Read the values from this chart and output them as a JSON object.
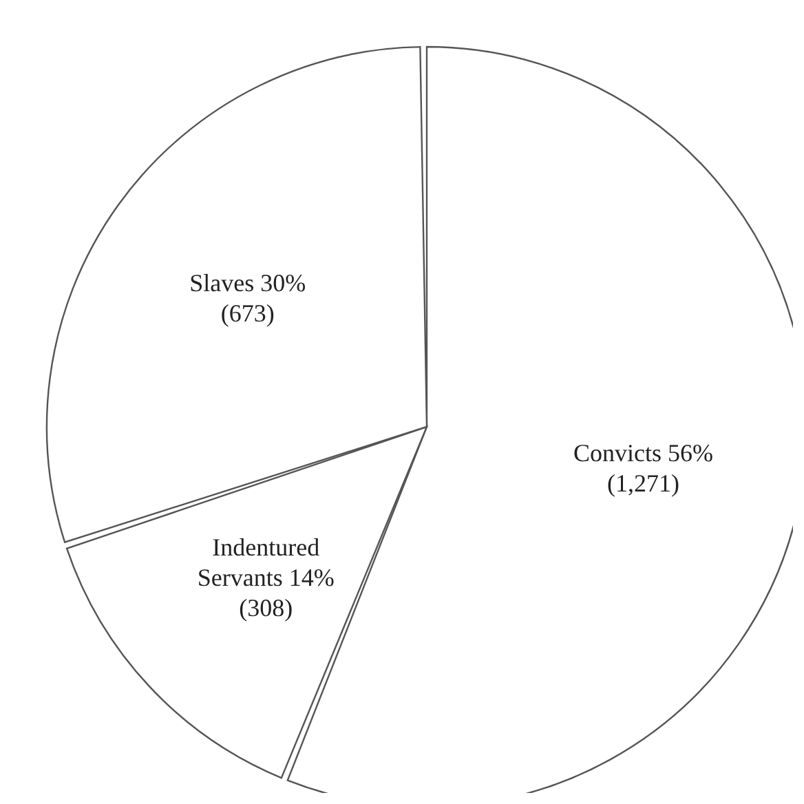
{
  "chart_data": {
    "type": "pie",
    "categories": [
      "Convicts",
      "Indentured Servants",
      "Slaves"
    ],
    "values": [
      1271,
      308,
      673
    ],
    "value_labels": [
      "56%\n(1,271)",
      "14%\n(308)",
      "30%\n(673)"
    ],
    "colors": [
      "#ffffff",
      "#ffffff",
      "#ffffff"
    ],
    "legend": false
  }
}
